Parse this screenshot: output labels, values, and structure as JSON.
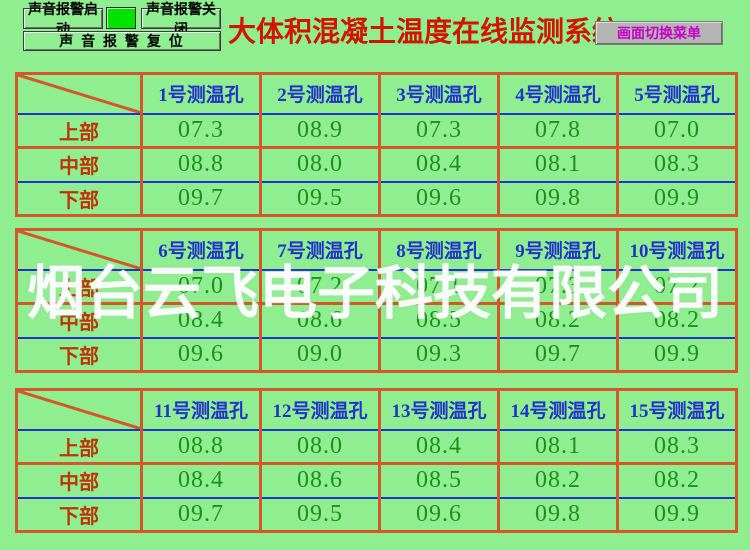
{
  "header": {
    "title": "大体积混凝土温度在线监测系统",
    "buttons": {
      "alarm_start": "声音报警启动",
      "alarm_stop": "声音报警关闭",
      "alarm_reset": "声 音 报 警 复 位",
      "screen_menu": "画面切换菜单"
    },
    "alarm_lamp_state": "on"
  },
  "watermark": "烟台云飞电子科技有限公司",
  "row_labels": [
    "上部",
    "中部",
    "下部"
  ],
  "tables": [
    {
      "columns": [
        "1号测温孔",
        "2号测温孔",
        "3号测温孔",
        "4号测温孔",
        "5号测温孔"
      ],
      "rows": [
        [
          "07.3",
          "08.9",
          "07.3",
          "07.8",
          "07.0"
        ],
        [
          "08.8",
          "08.0",
          "08.4",
          "08.1",
          "08.3"
        ],
        [
          "09.7",
          "09.5",
          "09.6",
          "09.8",
          "09.9"
        ]
      ]
    },
    {
      "columns": [
        "6号测温孔",
        "7号测温孔",
        "8号测温孔",
        "9号测温孔",
        "10号测温孔"
      ],
      "rows": [
        [
          "07.0",
          "07.2",
          "07.1",
          "07.3",
          "07.2"
        ],
        [
          "08.4",
          "08.6",
          "08.5",
          "08.2",
          "08.2"
        ],
        [
          "09.6",
          "09.0",
          "09.3",
          "09.7",
          "09.9"
        ]
      ]
    },
    {
      "columns": [
        "11号测温孔",
        "12号测温孔",
        "13号测温孔",
        "14号测温孔",
        "15号测温孔"
      ],
      "rows": [
        [
          "08.8",
          "08.0",
          "08.4",
          "08.1",
          "08.3"
        ],
        [
          "08.4",
          "08.6",
          "08.5",
          "08.2",
          "08.2"
        ],
        [
          "09.7",
          "09.5",
          "09.6",
          "09.8",
          "09.9"
        ]
      ]
    }
  ],
  "colors": {
    "bg": "#8FEE8F",
    "orange": "#D4572B",
    "blue": "#2233CC",
    "red": "#C03208",
    "green": "#1E8F1E",
    "title": "#D21400",
    "magenta": "#C800C8",
    "lamp": "#00E400",
    "gray": "#B4B4B4"
  }
}
